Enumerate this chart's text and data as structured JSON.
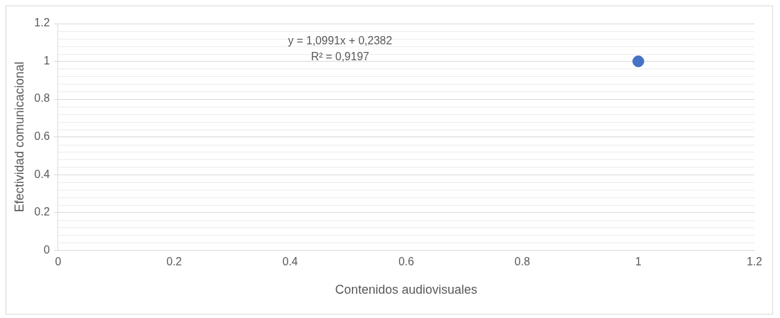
{
  "chart_data": {
    "type": "scatter",
    "xlabel": "Contenidos audiovisuales",
    "ylabel": "Efectividad comunicacional",
    "x": [
      1
    ],
    "series": [
      {
        "color": "#4472c4",
        "values": [
          1
        ]
      }
    ],
    "xlim": [
      0,
      1.2
    ],
    "xticks": [
      0,
      0.2,
      0.4,
      0.6,
      0.8,
      1,
      1.2
    ],
    "ylim": [
      0,
      1.2
    ],
    "yticks": [
      0,
      0.2,
      0.4,
      0.6,
      0.8,
      1,
      1.2
    ],
    "grid": "y",
    "legend": false,
    "marker": "circle",
    "annotations": [
      "y = 1,0991x + 0,2382",
      "R² = 0,9197"
    ]
  }
}
